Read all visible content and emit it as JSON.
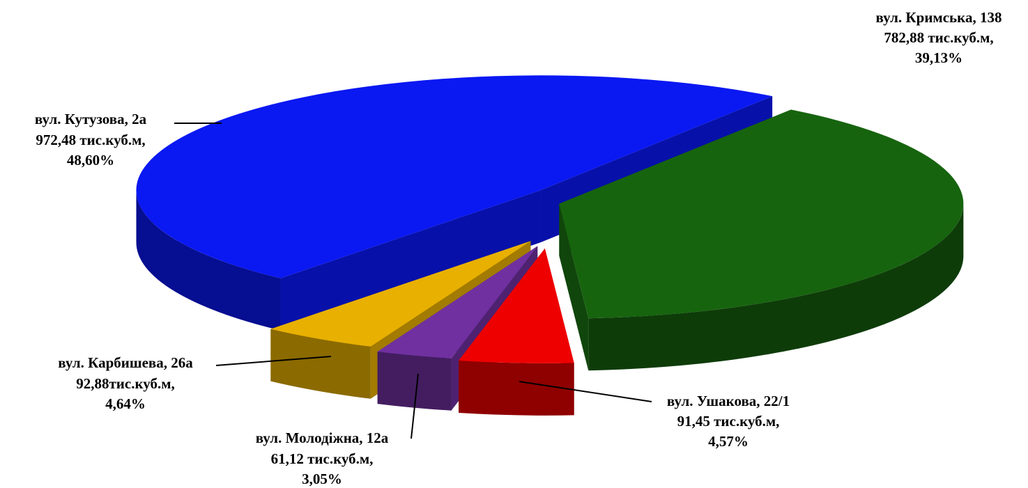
{
  "chart_data": {
    "type": "pie3d",
    "categories": [
      "вул. Кримська, 138",
      "вул. Ушакова, 22/1",
      "вул. Молодіжна, 12а",
      "вул. Карбишева, 26а",
      "вул. Кутузова, 2а"
    ],
    "values": [
      782.88,
      91.45,
      61.12,
      92.88,
      972.48
    ],
    "value_labels": [
      "782,88 тис.куб.м,",
      "91,45 тис.куб.м,",
      "61,12 тис.куб.м,",
      "92,88тис.куб.м,",
      "972,48 тис.куб.м,"
    ],
    "percentages": [
      39.13,
      4.57,
      3.05,
      4.64,
      48.6
    ],
    "percentage_labels": [
      "39,13%",
      "4,57%",
      "3,05%",
      "4,64%",
      "48,60%"
    ],
    "colors": [
      "#17640f",
      "#ee0000",
      "#7030a0",
      "#e8b000",
      "#0a18f2"
    ]
  }
}
